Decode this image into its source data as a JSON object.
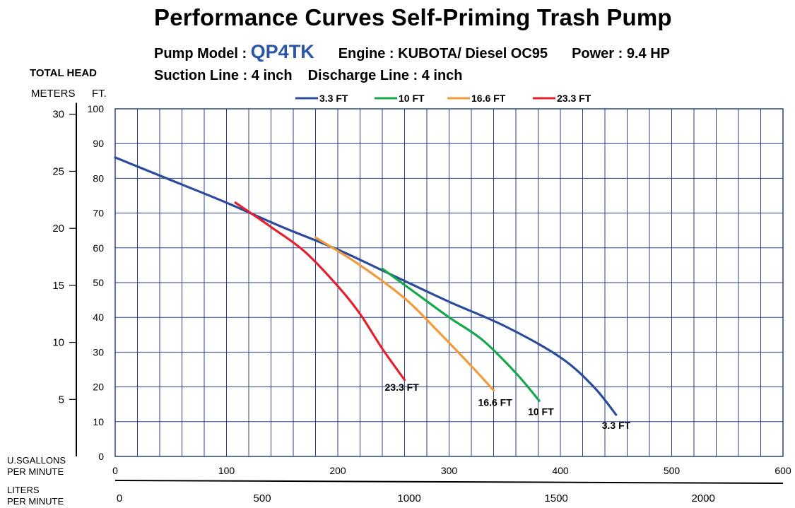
{
  "header": {
    "title": "Performance Curves    Self-Priming  Trash Pump",
    "model_label": "Pump Model : ",
    "model_value": "QP4TK",
    "engine": "Engine : KUBOTA/ Diesel OC95",
    "power": "Power : 9.4 HP",
    "suction": "Suction  Line : 4 inch",
    "discharge": "Discharge Line : 4 inch"
  },
  "axes_text": {
    "total_head": "TOTAL HEAD",
    "meters": "METERS",
    "feet": "FT.",
    "usgal_line1": "U.SGALLONS",
    "usgal_line2": "PER MINUTE",
    "liters_line1": "LITERS",
    "liters_line2": "PER MINUTE"
  },
  "colors": {
    "blue": "#2b4c9a",
    "green": "#14a84a",
    "orange": "#f39a3a",
    "red": "#e3202c",
    "grid": "#2b3f8a"
  },
  "chart_data": {
    "type": "line",
    "xlabel": "U.SGALLONS PER MINUTE",
    "ylabel": "TOTAL HEAD FT.",
    "xlim": [
      0,
      600
    ],
    "ylim": [
      0,
      100
    ],
    "x_ticks": [
      0,
      100,
      200,
      300,
      400,
      500,
      600
    ],
    "y_ticks": [
      0,
      10,
      20,
      30,
      40,
      50,
      60,
      70,
      80,
      90,
      100
    ],
    "meters_ticks": [
      5,
      10,
      15,
      20,
      25,
      30
    ],
    "liters_ticks": [
      0,
      500,
      1000,
      1500,
      2000
    ],
    "grid": true,
    "legend_position": "top",
    "series": [
      {
        "name": "3.3 FT",
        "color": "#2b4c9a",
        "end_label": "3.3 FT",
        "x": [
          0,
          50,
          100,
          150,
          200,
          250,
          300,
          350,
          400,
          430,
          450
        ],
        "y": [
          86,
          79.5,
          73,
          66,
          59.5,
          52,
          44.5,
          37.5,
          28.5,
          20,
          12
        ]
      },
      {
        "name": "10 FT",
        "color": "#14a84a",
        "end_label": "10 FT",
        "x": [
          240,
          270,
          300,
          330,
          360,
          381
        ],
        "y": [
          54,
          47,
          40,
          33.5,
          24,
          16
        ]
      },
      {
        "name": "16.6 FT",
        "color": "#f39a3a",
        "end_label": "16.6 FT",
        "x": [
          180,
          220,
          260,
          290,
          320,
          340
        ],
        "y": [
          63,
          55,
          45.5,
          36,
          26,
          19
        ]
      },
      {
        "name": "23.3 FT",
        "color": "#e3202c",
        "end_label": "23.3 FT",
        "x": [
          108,
          140,
          170,
          200,
          220,
          240,
          260
        ],
        "y": [
          73,
          66,
          59,
          49,
          41,
          31,
          22
        ]
      }
    ]
  }
}
